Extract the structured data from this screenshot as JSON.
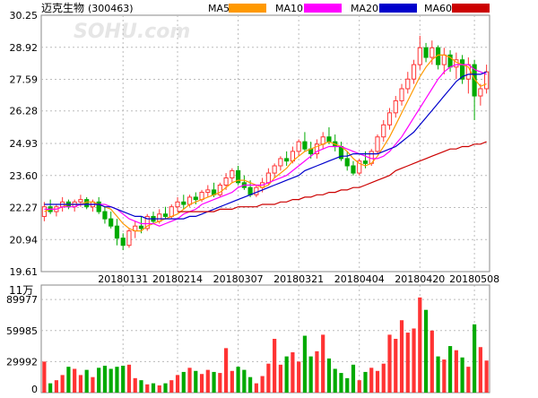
{
  "header": {
    "title": "迈克生物",
    "code": "(300463)",
    "watermark": "SOHU.com",
    "legend": [
      {
        "label": "MA5",
        "color": "#ff9900"
      },
      {
        "label": "MA10",
        "color": "#ff00ff"
      },
      {
        "label": "MA20",
        "color": "#0000cc"
      },
      {
        "label": "MA60",
        "color": "#cc0000"
      }
    ]
  },
  "chart_data": [
    {
      "type": "candlestick",
      "title": "迈克生物(300463)",
      "ylim": [
        19.61,
        30.25
      ],
      "y_ticks": [
        "30.25",
        "28.92",
        "27.59",
        "26.28",
        "24.93",
        "23.60",
        "22.27",
        "20.94",
        "19.61"
      ],
      "x_labels": [
        "20180131",
        "20180214",
        "20180307",
        "20180321",
        "20180404",
        "20180420",
        "20180508"
      ],
      "x_label_index": [
        13,
        22,
        32,
        42,
        52,
        62,
        71
      ],
      "up_color": "#ff3333",
      "down_color": "#00aa00",
      "candles": [
        [
          21.9,
          22.5,
          21.7,
          22.3
        ],
        [
          22.3,
          22.6,
          22.0,
          22.1
        ],
        [
          22.1,
          22.4,
          21.9,
          22.3
        ],
        [
          22.3,
          22.7,
          22.1,
          22.5
        ],
        [
          22.5,
          22.6,
          22.2,
          22.3
        ],
        [
          22.3,
          22.6,
          22.1,
          22.5
        ],
        [
          22.5,
          22.8,
          22.3,
          22.6
        ],
        [
          22.6,
          22.7,
          22.2,
          22.3
        ],
        [
          22.3,
          22.6,
          22.1,
          22.5
        ],
        [
          22.5,
          22.7,
          22.0,
          22.1
        ],
        [
          22.1,
          22.3,
          21.6,
          21.8
        ],
        [
          21.8,
          22.1,
          21.4,
          21.5
        ],
        [
          21.5,
          21.8,
          20.7,
          21.0
        ],
        [
          21.0,
          21.2,
          20.5,
          20.7
        ],
        [
          20.7,
          21.4,
          20.6,
          21.3
        ],
        [
          21.3,
          21.7,
          21.0,
          21.5
        ],
        [
          21.5,
          21.9,
          21.2,
          21.4
        ],
        [
          21.4,
          22.0,
          21.3,
          21.9
        ],
        [
          21.9,
          22.1,
          21.6,
          21.7
        ],
        [
          21.7,
          22.2,
          21.6,
          22.0
        ],
        [
          22.0,
          22.3,
          21.8,
          21.9
        ],
        [
          21.9,
          22.4,
          21.8,
          22.3
        ],
        [
          22.3,
          22.7,
          22.1,
          22.5
        ],
        [
          22.5,
          22.8,
          22.2,
          22.4
        ],
        [
          22.4,
          22.8,
          22.3,
          22.7
        ],
        [
          22.7,
          22.9,
          22.4,
          22.6
        ],
        [
          22.6,
          23.0,
          22.5,
          22.9
        ],
        [
          22.9,
          23.2,
          22.7,
          23.0
        ],
        [
          23.0,
          23.3,
          22.7,
          22.8
        ],
        [
          22.8,
          23.3,
          22.7,
          23.2
        ],
        [
          23.2,
          23.7,
          23.0,
          23.5
        ],
        [
          23.5,
          23.9,
          23.3,
          23.8
        ],
        [
          23.8,
          24.0,
          23.2,
          23.3
        ],
        [
          23.3,
          23.6,
          23.0,
          23.1
        ],
        [
          23.1,
          23.4,
          22.7,
          22.8
        ],
        [
          22.8,
          23.2,
          22.7,
          23.1
        ],
        [
          23.1,
          23.5,
          22.9,
          23.3
        ],
        [
          23.3,
          23.9,
          23.2,
          23.7
        ],
        [
          23.7,
          24.1,
          23.5,
          24.0
        ],
        [
          24.0,
          24.4,
          23.8,
          24.3
        ],
        [
          24.3,
          24.6,
          24.0,
          24.2
        ],
        [
          24.2,
          24.8,
          24.1,
          24.6
        ],
        [
          24.6,
          25.1,
          24.4,
          25.0
        ],
        [
          25.0,
          25.4,
          24.6,
          24.7
        ],
        [
          24.7,
          25.0,
          24.3,
          24.5
        ],
        [
          24.5,
          25.1,
          24.3,
          24.9
        ],
        [
          24.9,
          25.4,
          24.7,
          25.2
        ],
        [
          25.2,
          25.6,
          24.9,
          25.0
        ],
        [
          25.0,
          25.3,
          24.6,
          24.8
        ],
        [
          24.8,
          25.0,
          24.2,
          24.3
        ],
        [
          24.3,
          24.6,
          23.8,
          24.0
        ],
        [
          24.0,
          24.2,
          23.6,
          23.7
        ],
        [
          23.7,
          24.3,
          23.6,
          24.2
        ],
        [
          24.2,
          24.6,
          23.9,
          24.1
        ],
        [
          24.1,
          24.7,
          24.0,
          24.6
        ],
        [
          24.6,
          25.3,
          24.5,
          25.2
        ],
        [
          25.2,
          25.9,
          25.0,
          25.7
        ],
        [
          25.7,
          26.4,
          25.5,
          26.2
        ],
        [
          26.2,
          26.9,
          26.0,
          26.7
        ],
        [
          26.7,
          27.4,
          26.5,
          27.2
        ],
        [
          27.2,
          27.9,
          27.0,
          27.6
        ],
        [
          27.6,
          28.4,
          27.4,
          28.2
        ],
        [
          28.2,
          29.4,
          28.0,
          28.9
        ],
        [
          28.9,
          29.1,
          28.3,
          28.5
        ],
        [
          28.5,
          29.2,
          28.2,
          28.9
        ],
        [
          28.9,
          29.0,
          28.0,
          28.2
        ],
        [
          28.2,
          28.9,
          27.8,
          28.6
        ],
        [
          28.6,
          28.8,
          27.9,
          28.1
        ],
        [
          28.1,
          28.7,
          27.6,
          28.4
        ],
        [
          28.4,
          28.6,
          27.4,
          27.6
        ],
        [
          27.6,
          28.5,
          27.0,
          28.2
        ],
        [
          28.2,
          28.4,
          25.9,
          26.9
        ],
        [
          26.9,
          27.4,
          26.5,
          27.2
        ],
        [
          27.2,
          28.2,
          27.0,
          27.9
        ]
      ],
      "series": [
        {
          "name": "MA5",
          "color": "#ff9900",
          "values": [
            22.1,
            22.2,
            22.2,
            22.3,
            22.4,
            22.4,
            22.4,
            22.5,
            22.5,
            22.4,
            22.3,
            22.2,
            21.9,
            21.6,
            21.4,
            21.3,
            21.3,
            21.5,
            21.6,
            21.7,
            21.8,
            21.9,
            22.0,
            22.2,
            22.4,
            22.5,
            22.6,
            22.7,
            22.8,
            22.9,
            23.1,
            23.3,
            23.4,
            23.4,
            23.3,
            23.2,
            23.1,
            23.2,
            23.5,
            23.7,
            23.9,
            24.2,
            24.4,
            24.6,
            24.7,
            24.8,
            24.9,
            25.0,
            24.9,
            24.8,
            24.6,
            24.3,
            24.1,
            24.0,
            24.1,
            24.4,
            24.8,
            25.2,
            25.7,
            26.2,
            26.7,
            27.2,
            27.7,
            28.1,
            28.4,
            28.6,
            28.6,
            28.5,
            28.3,
            28.2,
            28.1,
            27.6,
            27.3,
            27.4
          ]
        },
        {
          "name": "MA10",
          "color": "#ff00ff",
          "values": [
            22.2,
            22.2,
            22.2,
            22.3,
            22.3,
            22.3,
            22.4,
            22.4,
            22.4,
            22.4,
            22.4,
            22.3,
            22.2,
            22.0,
            21.8,
            21.7,
            21.6,
            21.6,
            21.6,
            21.5,
            21.6,
            21.7,
            21.8,
            22.0,
            22.1,
            22.2,
            22.4,
            22.5,
            22.6,
            22.7,
            22.8,
            22.9,
            23.1,
            23.2,
            23.2,
            23.2,
            23.2,
            23.3,
            23.4,
            23.5,
            23.6,
            23.8,
            24.0,
            24.2,
            24.4,
            24.6,
            24.7,
            24.8,
            24.8,
            24.8,
            24.7,
            24.6,
            24.5,
            24.4,
            24.3,
            24.3,
            24.4,
            24.6,
            24.9,
            25.2,
            25.6,
            26.0,
            26.4,
            26.8,
            27.2,
            27.6,
            27.9,
            28.1,
            28.2,
            28.2,
            28.2,
            28.0,
            27.9,
            27.8
          ]
        },
        {
          "name": "MA20",
          "color": "#0000cc",
          "values": [
            22.4,
            22.4,
            22.4,
            22.4,
            22.4,
            22.4,
            22.4,
            22.4,
            22.4,
            22.4,
            22.3,
            22.3,
            22.2,
            22.1,
            22.0,
            21.9,
            21.9,
            21.8,
            21.8,
            21.8,
            21.8,
            21.8,
            21.8,
            21.8,
            21.9,
            21.9,
            22.0,
            22.1,
            22.2,
            22.3,
            22.4,
            22.5,
            22.6,
            22.7,
            22.8,
            22.9,
            23.0,
            23.1,
            23.2,
            23.3,
            23.4,
            23.5,
            23.6,
            23.8,
            23.9,
            24.0,
            24.1,
            24.2,
            24.3,
            24.4,
            24.4,
            24.5,
            24.5,
            24.5,
            24.5,
            24.5,
            24.6,
            24.7,
            24.8,
            25.0,
            25.2,
            25.4,
            25.7,
            26.0,
            26.3,
            26.6,
            26.9,
            27.2,
            27.5,
            27.7,
            27.8,
            27.8,
            27.8,
            27.9
          ]
        },
        {
          "name": "MA60",
          "color": "#cc0000",
          "values": [
            null,
            null,
            null,
            null,
            null,
            null,
            null,
            null,
            null,
            null,
            null,
            null,
            null,
            null,
            null,
            null,
            null,
            null,
            null,
            null,
            null,
            null,
            22.1,
            22.1,
            22.1,
            22.1,
            22.1,
            22.1,
            22.1,
            22.2,
            22.2,
            22.2,
            22.3,
            22.3,
            22.3,
            22.3,
            22.4,
            22.4,
            22.4,
            22.5,
            22.5,
            22.6,
            22.6,
            22.7,
            22.7,
            22.8,
            22.8,
            22.9,
            22.9,
            23.0,
            23.0,
            23.1,
            23.1,
            23.2,
            23.3,
            23.4,
            23.5,
            23.6,
            23.8,
            23.9,
            24.0,
            24.1,
            24.2,
            24.3,
            24.4,
            24.5,
            24.6,
            24.7,
            24.7,
            24.8,
            24.8,
            24.9,
            24.9,
            25.0
          ]
        }
      ]
    },
    {
      "type": "bar",
      "title": "11万",
      "ylim": [
        0,
        104000
      ],
      "y_ticks": [
        "89977",
        "59985",
        "29992",
        "0"
      ],
      "unit_label": "11万",
      "up_color": "#ff3333",
      "down_color": "#00aa00",
      "values": [
        30000,
        9000,
        12000,
        17000,
        25000,
        23000,
        17000,
        22000,
        15000,
        24000,
        26000,
        23000,
        25000,
        26000,
        27000,
        14000,
        12000,
        8000,
        9000,
        7000,
        9000,
        12000,
        17000,
        20000,
        24000,
        21000,
        18000,
        22000,
        20000,
        19000,
        43000,
        21000,
        25000,
        22000,
        15000,
        9000,
        16000,
        28000,
        52000,
        27000,
        35000,
        39000,
        30000,
        55000,
        35000,
        40000,
        56000,
        33000,
        23000,
        19000,
        14000,
        27000,
        12000,
        20000,
        24000,
        21000,
        28000,
        56000,
        52000,
        70000,
        58000,
        62000,
        92000,
        80000,
        60000,
        35000,
        32000,
        45000,
        41000,
        34000,
        25000,
        66000,
        44000,
        31000
      ]
    }
  ]
}
